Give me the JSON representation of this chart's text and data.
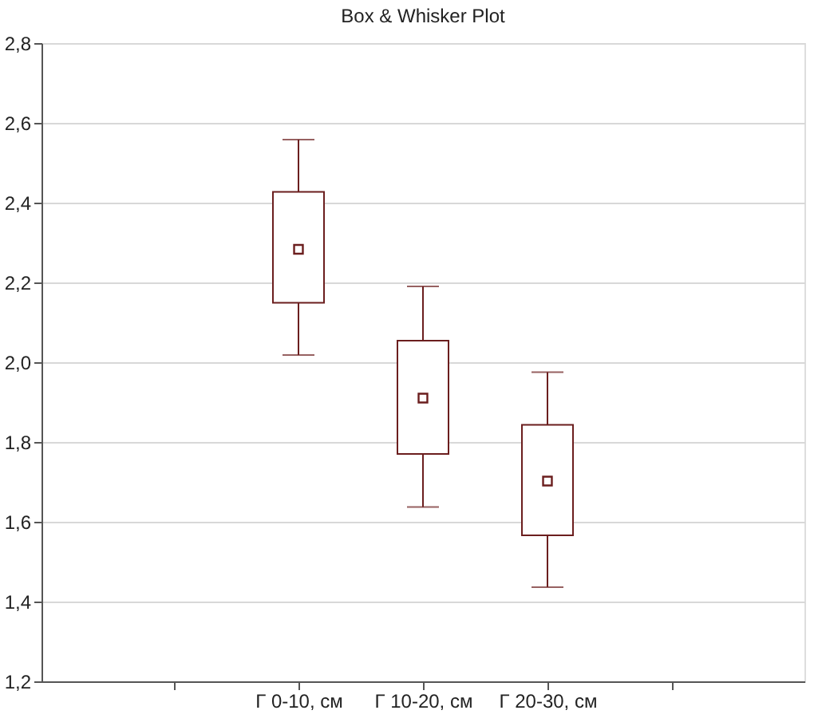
{
  "chart_data": {
    "type": "box",
    "title": "Box & Whisker Plot",
    "categories": [
      null,
      "Г 0-10, см",
      "Г 10-20, см",
      "Г 20-30, см",
      null
    ],
    "boxes": [
      null,
      {
        "low": 2.018,
        "q1": 2.149,
        "median": 2.283,
        "q3": 2.427,
        "high": 2.558
      },
      {
        "low": 1.637,
        "q1": 1.77,
        "median": 1.91,
        "q3": 2.054,
        "high": 2.19
      },
      {
        "low": 1.436,
        "q1": 1.566,
        "median": 1.702,
        "q3": 1.843,
        "high": 1.975
      },
      null
    ],
    "color": "#6b1e1e",
    "marker": "square",
    "ylim": [
      1.2,
      2.8
    ],
    "yticks": [
      {
        "value": 1.2,
        "label": "1,2"
      },
      {
        "value": 1.4,
        "label": "1,4"
      },
      {
        "value": 1.6,
        "label": "1,6"
      },
      {
        "value": 1.8,
        "label": "1,8"
      },
      {
        "value": 2.0,
        "label": "2,0"
      },
      {
        "value": 2.2,
        "label": "2,2"
      },
      {
        "value": 2.4,
        "label": "2,4"
      },
      {
        "value": 2.6,
        "label": "2,6"
      },
      {
        "value": 2.8,
        "label": "2,8"
      }
    ],
    "grid": "y"
  }
}
